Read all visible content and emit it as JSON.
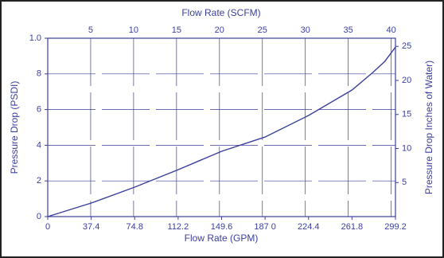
{
  "chart_data": {
    "type": "line",
    "x2label": "Flow Rate (SCFM)",
    "xlabel": "Flow Rate (GPM)",
    "ylabel": "Pressure Drop (PSDI)",
    "y2label": "Pressure Drop Inches of Water)",
    "x": [
      0,
      37.4,
      74.8,
      112.2,
      149.6,
      187.0,
      224.4,
      261.8,
      280,
      290,
      299.2
    ],
    "values": [
      0,
      0.076,
      0.165,
      0.263,
      0.366,
      0.446,
      0.567,
      0.71,
      0.81,
      0.87,
      0.95
    ],
    "color": "#3b3f9c",
    "xlim": [
      0,
      299.2
    ],
    "xticks": [
      0,
      37.4,
      74.8,
      112.2,
      149.6,
      {
        "value": 187.0,
        "label": "187 0"
      },
      224.4,
      261.8,
      299.2
    ],
    "x2lim": [
      0,
      40.5
    ],
    "x2ticks": [
      5,
      10,
      15,
      20,
      25,
      30,
      35,
      40
    ],
    "ylim": [
      0,
      1.0
    ],
    "yticks": [
      0,
      {
        "value": 0.2,
        "label": "2"
      },
      {
        "value": 0.4,
        "label": "4"
      },
      {
        "value": 0.6,
        "label": "6"
      },
      {
        "value": 0.8,
        "label": "8"
      },
      {
        "value": 1.0,
        "label": "1.0"
      }
    ],
    "y2lim": [
      0,
      26.2
    ],
    "y2ticks": [
      5,
      10,
      15,
      20,
      25
    ],
    "grid": true
  }
}
